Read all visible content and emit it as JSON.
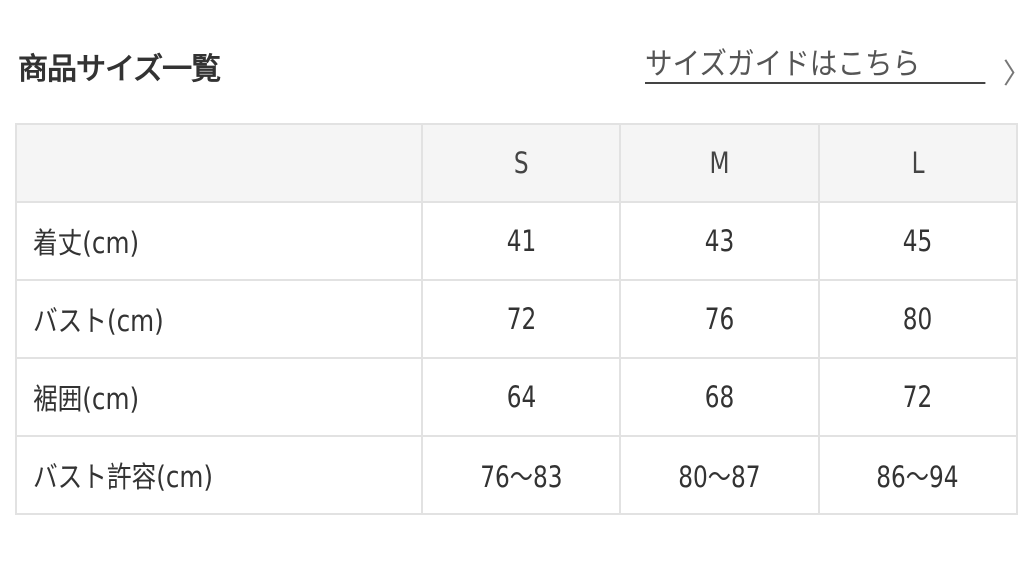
{
  "title": "商品サイズ一覧",
  "guide_link": {
    "label": "サイズガイドはこちら",
    "icon": "chevron-right-icon"
  },
  "table": {
    "columns": [
      "",
      "S",
      "M",
      "L"
    ],
    "rows": [
      {
        "label": "着丈(cm)",
        "values": [
          "41",
          "43",
          "45"
        ]
      },
      {
        "label": "バスト(cm)",
        "values": [
          "72",
          "76",
          "80"
        ]
      },
      {
        "label": "裾囲(cm)",
        "values": [
          "64",
          "68",
          "72"
        ]
      },
      {
        "label": "バスト許容(cm)",
        "values": [
          "76〜83",
          "80〜87",
          "86〜94"
        ]
      }
    ]
  }
}
